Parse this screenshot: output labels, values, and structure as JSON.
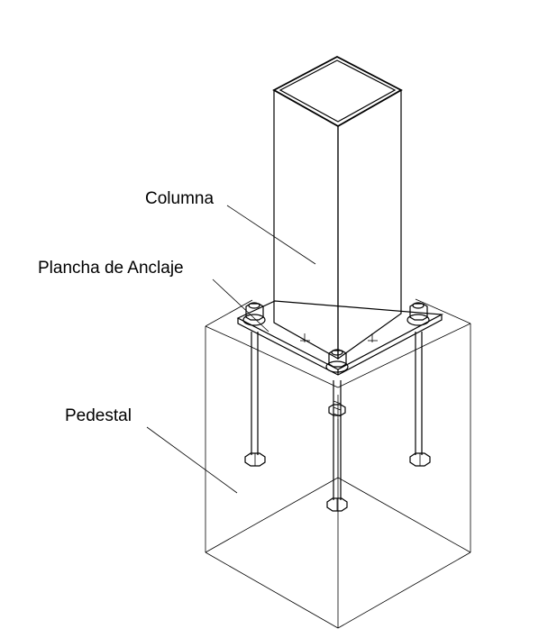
{
  "labels": {
    "column": "Columna",
    "base_plate": "Plancha de Anclaje",
    "pedestal": "Pedestal"
  },
  "colors": {
    "line": "#000000",
    "background": "#ffffff"
  }
}
